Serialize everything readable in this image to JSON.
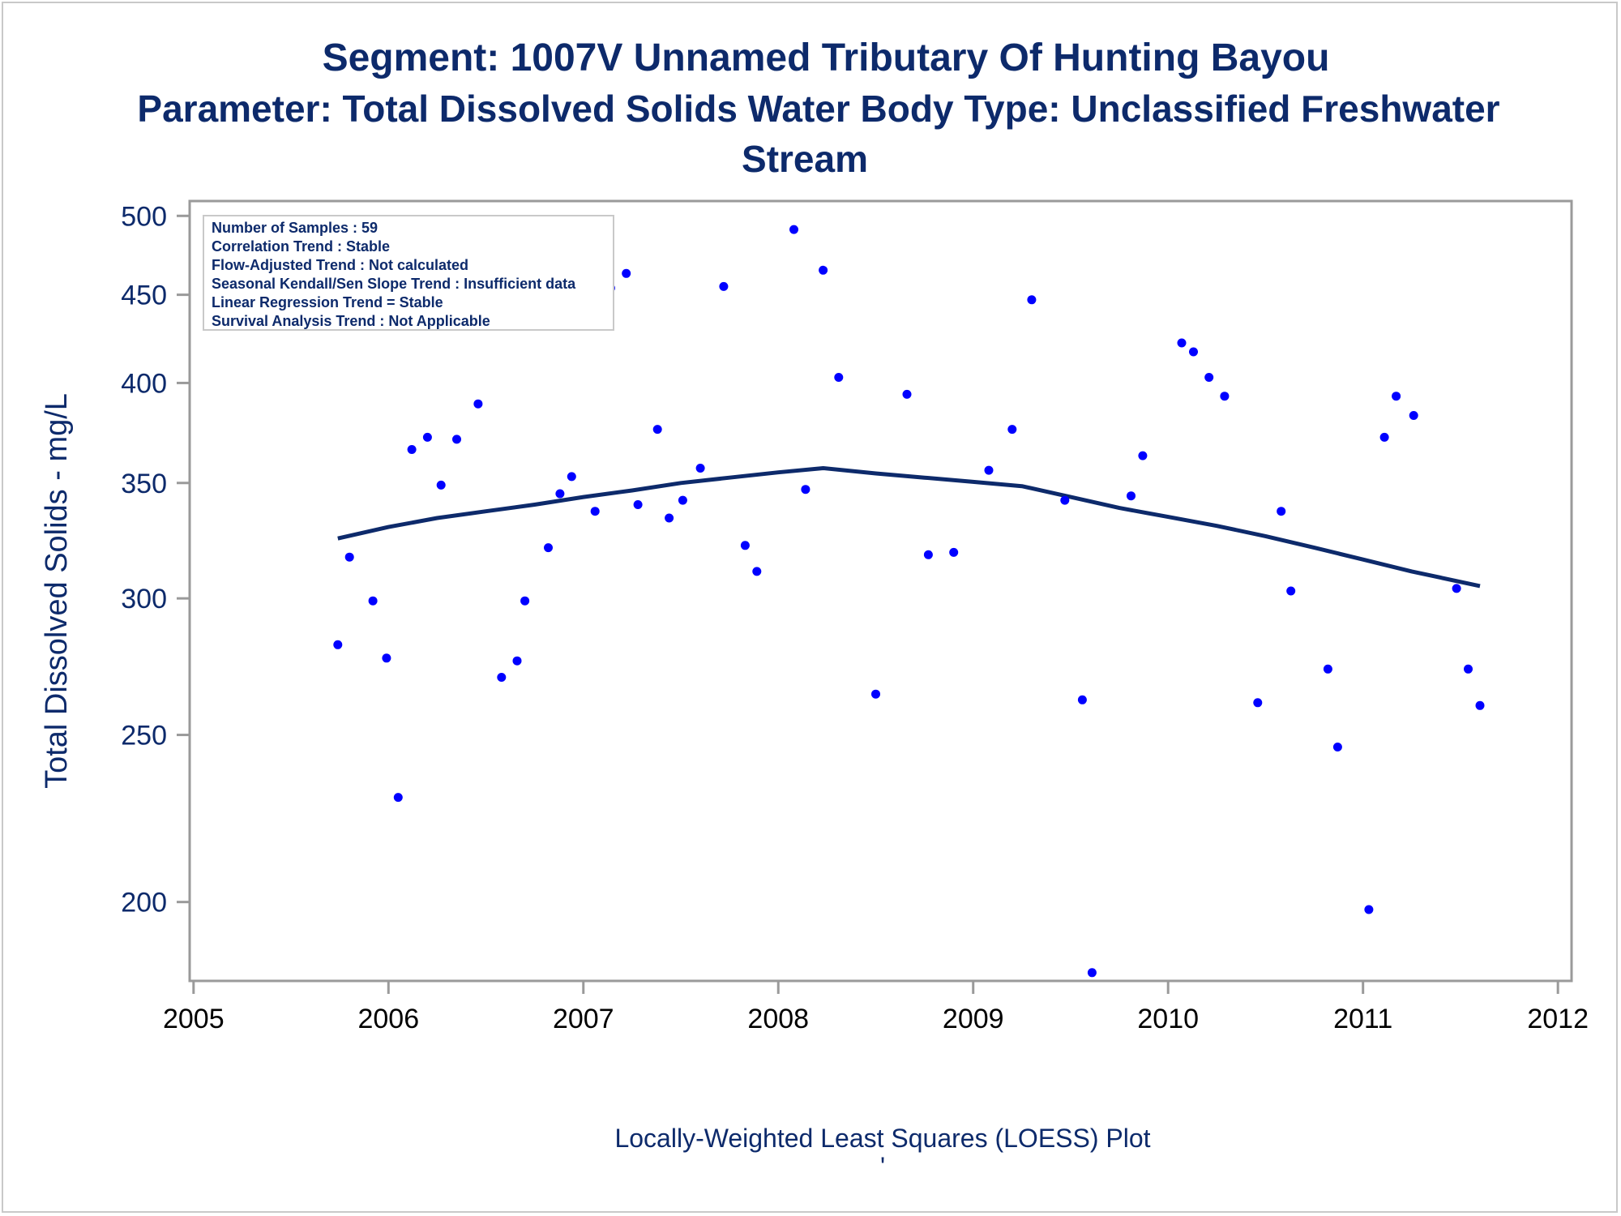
{
  "titles": {
    "line1": "Segment: 1007V  Unnamed Tributary Of Hunting Bayou",
    "line2": "Parameter: Total Dissolved Solids   Water Body Type: Unclassified Freshwater",
    "line3": "Stream"
  },
  "footnote": {
    "main": "Locally-Weighted Least Squares (LOESS) Plot",
    "mark": "'"
  },
  "stats_box": [
    "Number of Samples : 59",
    "Correlation Trend : Stable",
    "Flow-Adjusted Trend : Not calculated",
    "Seasonal Kendall/Sen Slope Trend : Insufficient data",
    "Linear Regression Trend = Stable",
    "Survival Analysis Trend : Not Applicable"
  ],
  "colors": {
    "points": "#0000ff",
    "loess": "#0d2a6b",
    "axis": "#9a9a9a",
    "text": "#0d2a6b"
  },
  "chart_data": {
    "type": "scatter",
    "title": "Segment: 1007V  Unnamed Tributary Of Hunting Bayou",
    "xlabel": "",
    "ylabel": "Total Dissolved Solids - mg/L",
    "yscale": "log",
    "xlim": [
      2004.98,
      2012.07
    ],
    "ylim": [
      180,
      510
    ],
    "xticks": [
      2005,
      2006,
      2007,
      2008,
      2009,
      2010,
      2011,
      2012
    ],
    "yticks": [
      200,
      250,
      300,
      350,
      400,
      450,
      500
    ],
    "grid": false,
    "series": [
      {
        "type": "scatter",
        "points": [
          [
            2005.74,
            282
          ],
          [
            2005.8,
            317
          ],
          [
            2005.92,
            299
          ],
          [
            2005.99,
            277
          ],
          [
            2006.05,
            230
          ],
          [
            2006.12,
            366
          ],
          [
            2006.2,
            372
          ],
          [
            2006.27,
            349
          ],
          [
            2006.35,
            371
          ],
          [
            2006.46,
            389
          ],
          [
            2006.58,
            270
          ],
          [
            2006.66,
            276
          ],
          [
            2006.7,
            299
          ],
          [
            2006.82,
            321
          ],
          [
            2006.88,
            345
          ],
          [
            2006.94,
            353
          ],
          [
            2007.06,
            337
          ],
          [
            2007.14,
            454
          ],
          [
            2007.22,
            463
          ],
          [
            2007.28,
            340
          ],
          [
            2007.38,
            376
          ],
          [
            2007.44,
            334
          ],
          [
            2007.51,
            342
          ],
          [
            2007.6,
            357
          ],
          [
            2007.72,
            455
          ],
          [
            2007.83,
            322
          ],
          [
            2007.89,
            311
          ],
          [
            2008.08,
            491
          ],
          [
            2008.14,
            347
          ],
          [
            2008.23,
            465
          ],
          [
            2008.31,
            403
          ],
          [
            2008.5,
            264
          ],
          [
            2008.66,
            394
          ],
          [
            2008.77,
            318
          ],
          [
            2008.9,
            319
          ],
          [
            2009.08,
            356
          ],
          [
            2009.2,
            376
          ],
          [
            2009.3,
            447
          ],
          [
            2009.47,
            342
          ],
          [
            2009.56,
            262
          ],
          [
            2009.61,
            182
          ],
          [
            2009.81,
            344
          ],
          [
            2009.87,
            363
          ],
          [
            2010.07,
            422
          ],
          [
            2010.13,
            417
          ],
          [
            2010.21,
            403
          ],
          [
            2010.29,
            393
          ],
          [
            2010.46,
            261
          ],
          [
            2010.58,
            337
          ],
          [
            2010.63,
            303
          ],
          [
            2010.82,
            273
          ],
          [
            2010.87,
            246
          ],
          [
            2011.03,
            198
          ],
          [
            2011.11,
            372
          ],
          [
            2011.17,
            393
          ],
          [
            2011.26,
            383
          ],
          [
            2011.48,
            304
          ],
          [
            2011.54,
            273
          ],
          [
            2011.6,
            260
          ]
        ]
      },
      {
        "type": "line",
        "points": [
          [
            2005.74,
            325
          ],
          [
            2006.0,
            330
          ],
          [
            2006.25,
            334
          ],
          [
            2006.5,
            337
          ],
          [
            2006.75,
            340
          ],
          [
            2007.0,
            343.5
          ],
          [
            2007.25,
            346.5
          ],
          [
            2007.5,
            350
          ],
          [
            2007.75,
            352.5
          ],
          [
            2008.0,
            355
          ],
          [
            2008.23,
            357
          ],
          [
            2008.5,
            354.5
          ],
          [
            2008.75,
            352.5
          ],
          [
            2009.0,
            350.5
          ],
          [
            2009.25,
            348.5
          ],
          [
            2009.5,
            343.5
          ],
          [
            2009.75,
            338.5
          ],
          [
            2010.0,
            334.5
          ],
          [
            2010.25,
            330.5
          ],
          [
            2010.5,
            326
          ],
          [
            2010.75,
            321
          ],
          [
            2011.0,
            316
          ],
          [
            2011.25,
            311
          ],
          [
            2011.6,
            305
          ]
        ]
      }
    ]
  }
}
